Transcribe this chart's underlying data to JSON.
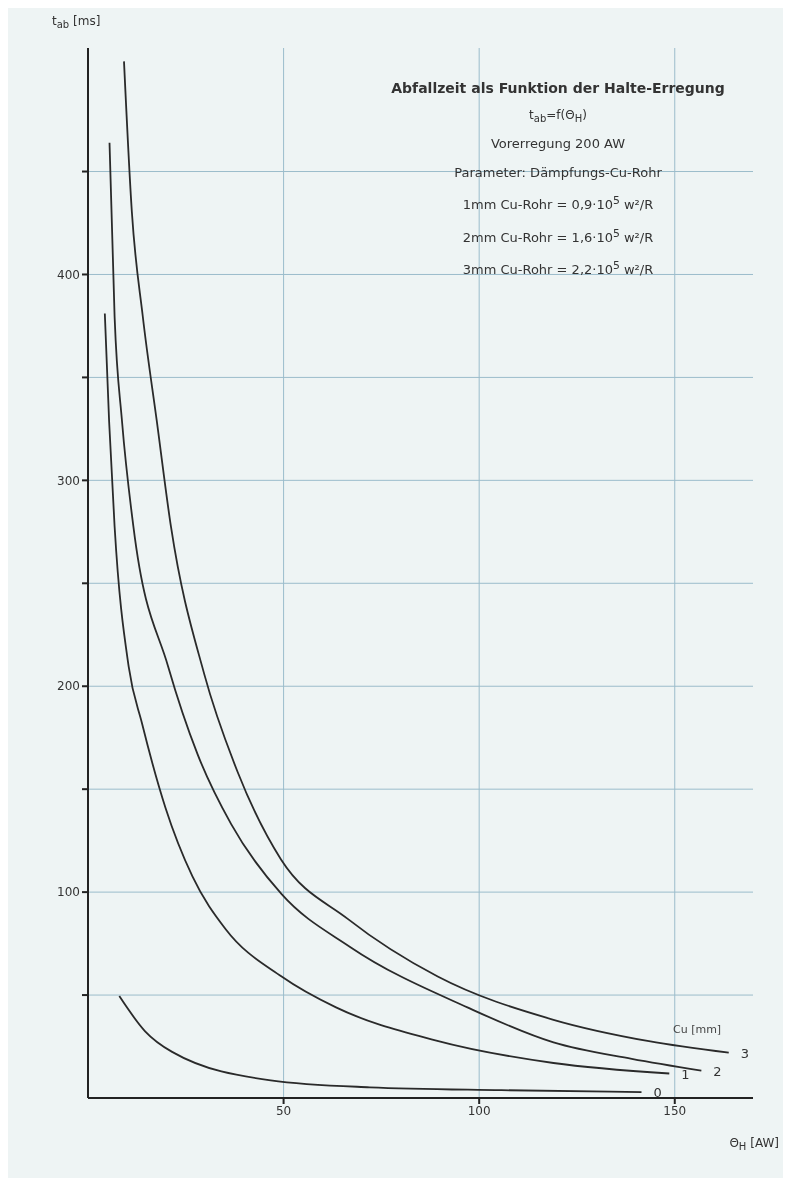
{
  "chart_data": {
    "type": "line",
    "title": "Abfallzeit als Funktion der Halte-Erregung",
    "subtitle": "t$_{ab}$=f(Θ$_{H}$)",
    "annotations": [
      "Vorerregung 200 AW",
      "Parameter: Dämpfungs-Cu-Rohr",
      "1mm Cu-Rohr = 0,9·10$^{5}$ w²/R",
      "2mm Cu-Rohr = 1,6·10$^{5}$ w²/R",
      "3mm Cu-Rohr = 2,2·10$^{5}$ w²/R"
    ],
    "xlabel": "Θ$_{H}$ [AW]",
    "ylabel": "t$_{ab}$ [ms]",
    "legend_title": "Cu [mm]",
    "xlim": [
      0,
      170
    ],
    "ylim": [
      0,
      510
    ],
    "xticks": [
      50,
      100,
      150
    ],
    "yticks": [
      {
        "value": 50,
        "label": null
      },
      100,
      {
        "value": 150,
        "label": null
      },
      200,
      {
        "value": 250,
        "label": null
      },
      300,
      {
        "value": 350,
        "label": null
      },
      400,
      {
        "value": 450,
        "label": null
      }
    ],
    "grid": true,
    "marker": "none",
    "line_style": "solid",
    "series": [
      {
        "name": "0",
        "color": "#2a2a2a",
        "x": [
          8,
          14.6,
          21.5,
          46.7,
          72,
          105.7,
          141.5
        ],
        "values": [
          49.5,
          32.4,
          22.4,
          8.6,
          5.2,
          3.8,
          2.9
        ]
      },
      {
        "name": "1",
        "color": "#2a2a2a",
        "x": [
          4.3,
          5.4,
          6.8,
          10.4,
          13.8,
          19.8,
          26.7,
          35.2,
          49.5,
          63.4,
          88.8,
          119,
          148.6
        ],
        "values": [
          381,
          328.6,
          277.6,
          209.5,
          182,
          141,
          107.6,
          82,
          59,
          44,
          28,
          17,
          11.9
        ]
      },
      {
        "name": "2",
        "color": "#2a2a2a",
        "x": [
          5.5,
          6.8,
          8.7,
          11.6,
          20.5,
          28,
          36.6,
          49.5,
          66.9,
          97,
          119,
          139,
          156.8
        ],
        "values": [
          464,
          379.5,
          328.6,
          277.6,
          209.5,
          167,
          133,
          99,
          73.5,
          44,
          27,
          19,
          13.3
        ]
      },
      {
        "name": "3",
        "color": "#2a2a2a",
        "x": [
          9.2,
          11.2,
          14,
          17.6,
          21.2,
          29.7,
          38.2,
          49.3,
          66.4,
          89.4,
          119,
          143.4,
          163.8
        ],
        "values": [
          503.5,
          430.7,
          379.7,
          328.6,
          277.6,
          206,
          158.6,
          116,
          87,
          59,
          38,
          27.6,
          22
        ]
      }
    ]
  }
}
